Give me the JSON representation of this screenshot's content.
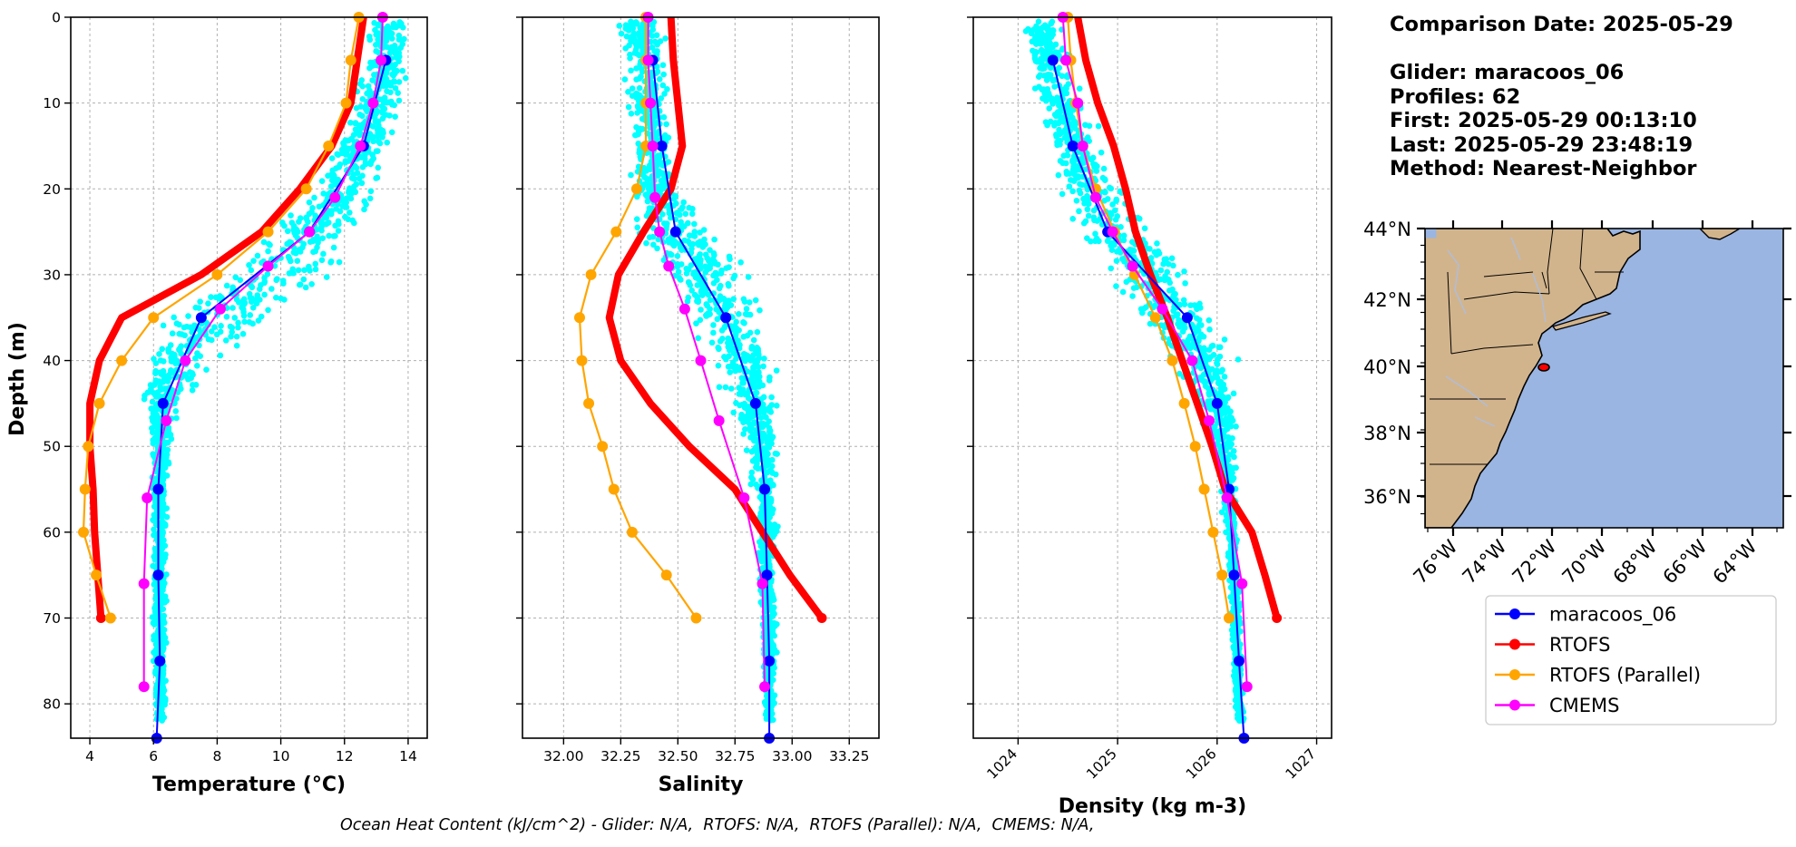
{
  "info": {
    "comparison_date": "Comparison Date: 2025-05-29",
    "glider": "Glider: maracoos_06",
    "profiles": "Profiles: 62",
    "first": "First: 2025-05-29 00:13:10",
    "last": "Last: 2025-05-29 23:48:19",
    "method": "Method: Nearest-Neighbor"
  },
  "footer": "Ocean Heat Content (kJ/cm^2) - Glider: N/A,  RTOFS: N/A,  RTOFS (Parallel): N/A,  CMEMS: N/A,",
  "colors": {
    "glider": "#0000ff",
    "rtofs": "#ff0000",
    "rtofs_parallel": "#ffa500",
    "cmems": "#ff00ff",
    "glider_raw": "#00ffff",
    "land": "#d2b48c",
    "ocean": "#9ab5e2",
    "track": "#ff0000"
  },
  "legend": [
    {
      "name": "maracoos_06",
      "color": "#0000ff"
    },
    {
      "name": "RTOFS",
      "color": "#ff0000"
    },
    {
      "name": "RTOFS (Parallel)",
      "color": "#ffa500"
    },
    {
      "name": "CMEMS",
      "color": "#ff00ff"
    }
  ],
  "chart_data": [
    {
      "type": "line",
      "xlabel": "Temperature (°C)",
      "ylabel": "Depth (m)",
      "xlim": [
        3.4,
        14.6
      ],
      "ylim": [
        84,
        0
      ],
      "xticks": [
        4,
        6,
        8,
        10,
        12,
        14
      ],
      "yticks": [
        0,
        10,
        20,
        30,
        40,
        50,
        60,
        70,
        80
      ],
      "grid": true,
      "raw_profile": {
        "name": "glider_raw",
        "depth": [
          1,
          5,
          10,
          15,
          20,
          25,
          30,
          35,
          40,
          45,
          50,
          55,
          60,
          65,
          70,
          75,
          80,
          82
        ],
        "mid": [
          13.4,
          13.3,
          13.0,
          12.5,
          11.9,
          11.0,
          9.8,
          8.0,
          6.8,
          6.3,
          6.2,
          6.2,
          6.2,
          6.2,
          6.2,
          6.2,
          6.2,
          6.2
        ],
        "spread": [
          0.6,
          0.7,
          0.8,
          0.9,
          1.0,
          1.3,
          1.8,
          1.6,
          1.0,
          0.5,
          0.3,
          0.25,
          0.2,
          0.2,
          0.2,
          0.2,
          0.2,
          0.2
        ]
      },
      "series": [
        {
          "name": "RTOFS",
          "depth": [
            0,
            5,
            10,
            15,
            20,
            25,
            30,
            35,
            40,
            45,
            50,
            55,
            60,
            65,
            70
          ],
          "values": [
            12.6,
            12.4,
            12.2,
            11.6,
            10.6,
            9.4,
            7.5,
            5.0,
            4.3,
            4.0,
            4.0,
            4.1,
            4.15,
            4.25,
            4.35
          ]
        },
        {
          "name": "RTOFS (Parallel)",
          "depth": [
            0,
            5,
            10,
            15,
            20,
            25,
            30,
            35,
            40,
            45,
            50,
            55,
            60,
            65,
            70
          ],
          "values": [
            12.45,
            12.2,
            12.05,
            11.5,
            10.8,
            9.6,
            8.0,
            6.0,
            5.0,
            4.3,
            3.95,
            3.85,
            3.8,
            4.2,
            4.65
          ]
        },
        {
          "name": "maracoos_06",
          "depth": [
            5,
            15,
            25,
            35,
            45,
            55,
            65,
            75,
            84
          ],
          "values": [
            13.3,
            12.6,
            10.9,
            7.5,
            6.3,
            6.15,
            6.15,
            6.2,
            6.1
          ]
        },
        {
          "name": "CMEMS",
          "depth": [
            0,
            5,
            10,
            15,
            21,
            25,
            29,
            34,
            40,
            47,
            56,
            66,
            78
          ],
          "values": [
            13.2,
            13.15,
            12.9,
            12.5,
            11.7,
            10.9,
            9.6,
            8.1,
            7.0,
            6.4,
            5.8,
            5.7,
            5.7
          ]
        }
      ]
    },
    {
      "type": "line",
      "xlabel": "Salinity",
      "xlim": [
        31.82,
        33.38
      ],
      "ylim": [
        84,
        0
      ],
      "xticks": [
        32.0,
        32.25,
        32.5,
        32.75,
        33.0,
        33.25
      ],
      "grid": true,
      "raw_profile": {
        "name": "glider_raw",
        "depth": [
          1,
          5,
          10,
          15,
          20,
          25,
          30,
          35,
          40,
          45,
          50,
          55,
          60,
          65,
          70,
          75,
          80,
          82
        ],
        "mid": [
          32.33,
          32.35,
          32.37,
          32.38,
          32.4,
          32.48,
          32.62,
          32.72,
          32.78,
          32.83,
          32.87,
          32.88,
          32.89,
          32.89,
          32.9,
          32.9,
          32.9,
          32.9
        ],
        "spread": [
          0.1,
          0.1,
          0.08,
          0.08,
          0.1,
          0.16,
          0.17,
          0.16,
          0.13,
          0.1,
          0.06,
          0.05,
          0.04,
          0.04,
          0.03,
          0.03,
          0.02,
          0.02
        ]
      },
      "series": [
        {
          "name": "RTOFS",
          "depth": [
            0,
            5,
            10,
            15,
            20,
            25,
            30,
            35,
            40,
            45,
            50,
            55,
            60,
            65,
            70
          ],
          "values": [
            32.47,
            32.48,
            32.5,
            32.52,
            32.47,
            32.35,
            32.24,
            32.2,
            32.25,
            32.38,
            32.55,
            32.75,
            32.87,
            32.99,
            33.13
          ]
        },
        {
          "name": "RTOFS (Parallel)",
          "depth": [
            0,
            5,
            10,
            15,
            20,
            25,
            30,
            35,
            40,
            45,
            50,
            55,
            60,
            65,
            70
          ],
          "values": [
            32.36,
            32.36,
            32.36,
            32.36,
            32.32,
            32.23,
            32.12,
            32.07,
            32.08,
            32.11,
            32.17,
            32.22,
            32.3,
            32.45,
            32.58
          ]
        },
        {
          "name": "maracoos_06",
          "depth": [
            5,
            15,
            25,
            35,
            45,
            55,
            65,
            75,
            84
          ],
          "values": [
            32.39,
            32.43,
            32.49,
            32.71,
            32.84,
            32.88,
            32.89,
            32.9,
            32.9
          ]
        },
        {
          "name": "CMEMS",
          "depth": [
            0,
            5,
            10,
            15,
            21,
            25,
            29,
            34,
            40,
            47,
            56,
            66,
            78
          ],
          "values": [
            32.37,
            32.37,
            32.38,
            32.39,
            32.4,
            32.42,
            32.46,
            32.53,
            32.6,
            32.68,
            32.79,
            32.87,
            32.88
          ]
        }
      ]
    },
    {
      "type": "line",
      "xlabel": "Density (kg m-3)",
      "xlim": [
        1023.55,
        1027.15
      ],
      "ylim": [
        84,
        0
      ],
      "xticks": [
        1024,
        1025,
        1026,
        1027
      ],
      "grid": true,
      "raw_profile": {
        "name": "glider_raw",
        "depth": [
          1,
          5,
          10,
          15,
          20,
          25,
          30,
          35,
          40,
          45,
          50,
          55,
          60,
          65,
          70,
          75,
          80,
          82
        ],
        "mid": [
          1024.25,
          1024.3,
          1024.42,
          1024.57,
          1024.72,
          1024.98,
          1025.3,
          1025.62,
          1025.85,
          1026.0,
          1026.07,
          1026.12,
          1026.15,
          1026.17,
          1026.19,
          1026.2,
          1026.22,
          1026.24
        ],
        "spread": [
          0.15,
          0.2,
          0.22,
          0.25,
          0.3,
          0.38,
          0.4,
          0.36,
          0.28,
          0.18,
          0.1,
          0.08,
          0.06,
          0.05,
          0.05,
          0.04,
          0.04,
          0.04
        ]
      },
      "series": [
        {
          "name": "RTOFS",
          "depth": [
            0,
            5,
            10,
            15,
            20,
            25,
            30,
            35,
            40,
            45,
            50,
            55,
            60,
            65,
            70
          ],
          "values": [
            1024.6,
            1024.68,
            1024.8,
            1024.96,
            1025.08,
            1025.18,
            1025.33,
            1025.5,
            1025.65,
            1025.8,
            1025.95,
            1026.08,
            1026.35,
            1026.48,
            1026.6
          ]
        },
        {
          "name": "RTOFS (Parallel)",
          "depth": [
            0,
            5,
            10,
            15,
            20,
            25,
            30,
            35,
            40,
            45,
            50,
            55,
            60,
            65,
            70
          ],
          "values": [
            1024.5,
            1024.53,
            1024.58,
            1024.65,
            1024.78,
            1024.97,
            1025.17,
            1025.38,
            1025.55,
            1025.67,
            1025.78,
            1025.87,
            1025.96,
            1026.05,
            1026.12
          ]
        },
        {
          "name": "maracoos_06",
          "depth": [
            5,
            15,
            25,
            35,
            45,
            55,
            65,
            75,
            84
          ],
          "values": [
            1024.35,
            1024.55,
            1024.9,
            1025.7,
            1026.0,
            1026.12,
            1026.17,
            1026.22,
            1026.27
          ]
        },
        {
          "name": "CMEMS",
          "depth": [
            0,
            5,
            10,
            15,
            21,
            25,
            29,
            34,
            40,
            47,
            56,
            66,
            78
          ],
          "values": [
            1024.45,
            1024.48,
            1024.6,
            1024.65,
            1024.78,
            1024.95,
            1025.15,
            1025.45,
            1025.75,
            1025.92,
            1026.1,
            1026.25,
            1026.3
          ]
        }
      ]
    }
  ],
  "map": {
    "lat_ticks": [
      "44°N",
      "42°N",
      "40°N",
      "38°N",
      "36°N"
    ],
    "lon_ticks": [
      "76°W",
      "74°W",
      "72°W",
      "70°W",
      "68°W",
      "66°W",
      "64°W"
    ],
    "track": {
      "lon": -71.6,
      "lat": 40.0
    }
  }
}
